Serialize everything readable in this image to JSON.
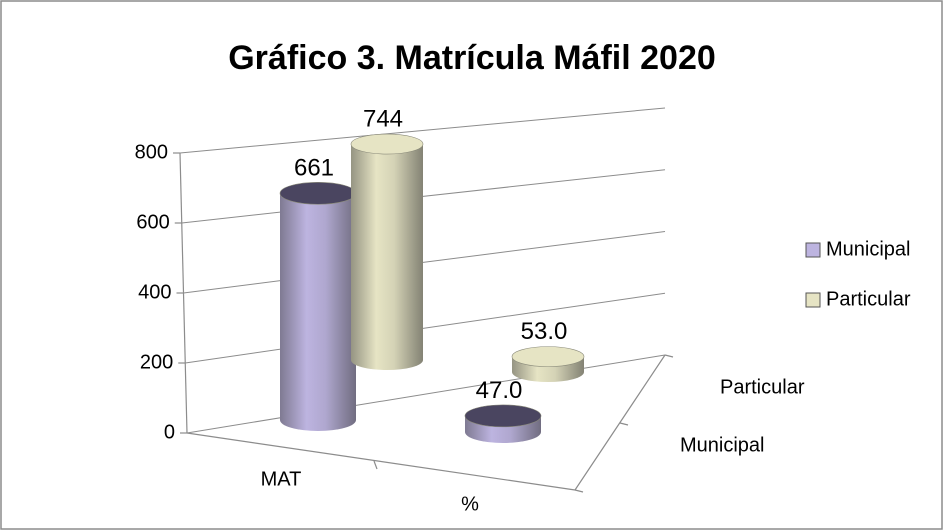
{
  "chart_data": {
    "type": "bar",
    "title": "Gráfico 3. Matrícula Máfil 2020",
    "categories": [
      "MAT",
      "%"
    ],
    "series": [
      {
        "name": "Municipal",
        "color": "#bdb4e0",
        "values": [
          661,
          47.0
        ],
        "value_labels": [
          "661",
          "47.0"
        ]
      },
      {
        "name": "Particular",
        "color": "#e6e4c4",
        "values": [
          744,
          53.0
        ],
        "value_labels": [
          "744",
          "53.0"
        ]
      }
    ],
    "ylim": [
      0,
      800
    ],
    "yticks": [
      0,
      200,
      400,
      600,
      800
    ],
    "grid": true,
    "legend": "right"
  }
}
